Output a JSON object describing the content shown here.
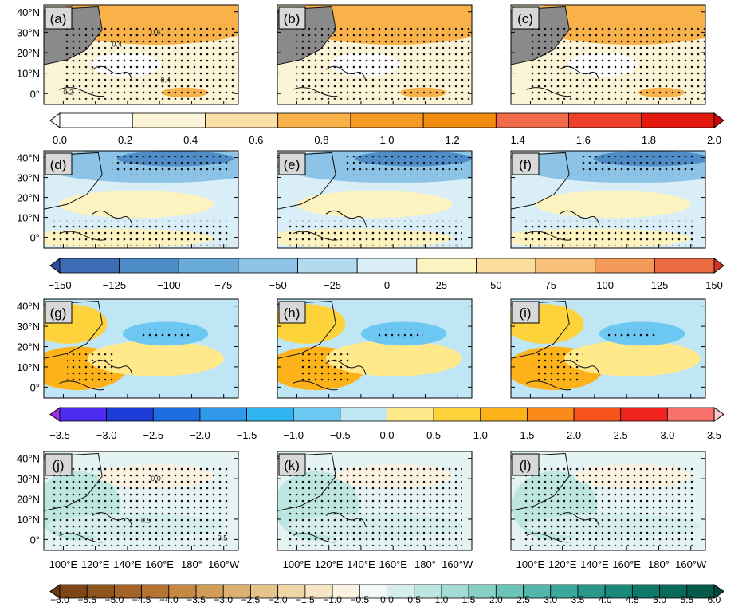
{
  "axes": {
    "lat_ticks": [
      "40°N",
      "30°N",
      "20°N",
      "10°N",
      "0°"
    ],
    "lon_ticks": [
      "100°E",
      "120°E",
      "140°E",
      "160°E",
      "180°",
      "160°W"
    ]
  },
  "rows": [
    {
      "panels": [
        "(a)",
        "(b)",
        "(c)"
      ],
      "colorbar": {
        "ticks": [
          "0.0",
          "0.2",
          "0.4",
          "0.6",
          "0.8",
          "1.0",
          "1.2",
          "1.4",
          "1.6",
          "1.8",
          "2.0"
        ],
        "colors": [
          "#ffffff",
          "#ffffff",
          "#fbf4d6",
          "#fbdfa8",
          "#f9b24a",
          "#f59a25",
          "#f28a10",
          "#f16b4a",
          "#ee3f2a",
          "#e41a10",
          "#c90a08"
        ]
      }
    },
    {
      "panels": [
        "(d)",
        "(e)",
        "(f)"
      ],
      "colorbar": {
        "ticks": [
          "−150",
          "−125",
          "−100",
          "−75",
          "−50",
          "−25",
          "0",
          "25",
          "50",
          "75",
          "100",
          "125",
          "150"
        ],
        "colors": [
          "#2c4ea0",
          "#3c6cb4",
          "#4e8dc8",
          "#6aaad8",
          "#8cc3e6",
          "#b3daef",
          "#d9eef6",
          "#fdf3c0",
          "#fbde9c",
          "#f8c07a",
          "#f39a5a",
          "#ea6a42",
          "#d8352a"
        ]
      }
    },
    {
      "panels": [
        "(g)",
        "(h)",
        "(i)"
      ],
      "colorbar": {
        "ticks": [
          "−3.5",
          "−3.0",
          "−2.5",
          "−2.0",
          "−1.5",
          "−1.0",
          "−0.5",
          "0.0",
          "0.5",
          "1.0",
          "1.5",
          "2.0",
          "2.5",
          "3.0",
          "3.5"
        ],
        "colors": [
          "#9b30e6",
          "#4b2cf0",
          "#1c3cd8",
          "#1f6ee0",
          "#2f98e8",
          "#2eb5f0",
          "#6cc8f2",
          "#bfe6f5",
          "#ffe98a",
          "#fdd23a",
          "#fdb21a",
          "#fb8a1a",
          "#f5531a",
          "#f0241c",
          "#f8716c",
          "#fbc8c8"
        ]
      }
    },
    {
      "panels": [
        "(j)",
        "(k)",
        "(l)"
      ],
      "colorbar": {
        "ticks": [
          "−6.0",
          "−5.5",
          "−5.0",
          "−4.5",
          "−4.0",
          "−3.5",
          "−3.0",
          "−2.5",
          "−2.0",
          "−1.5",
          "−1.0",
          "−0.5",
          "0.0",
          "0.5",
          "1.0",
          "1.5",
          "2.0",
          "2.5",
          "3.0",
          "3.5",
          "4.0",
          "4.5",
          "5.0",
          "5.5",
          "6.0"
        ],
        "colors": [
          "#6b3a10",
          "#7d4614",
          "#8f541c",
          "#a36426",
          "#b57432",
          "#c48842",
          "#d19c58",
          "#ddb070",
          "#e7c48a",
          "#efd6a6",
          "#f6e6c6",
          "#fbf2e2",
          "#f2f8f8",
          "#d6efec",
          "#bde6e0",
          "#a2dcd4",
          "#86d0c6",
          "#6cc4b8",
          "#52b6aa",
          "#3aa89a",
          "#28988a",
          "#1a8a7a",
          "#107a6a",
          "#0a6a5a",
          "#055a4a",
          "#034a3c"
        ]
      }
    }
  ],
  "map_labels": {
    "row_a": [
      "0.4",
      "0.6",
      "0.4",
      "0.2"
    ],
    "row_j": [
      "0.0",
      "0.5",
      "-0.5"
    ]
  }
}
